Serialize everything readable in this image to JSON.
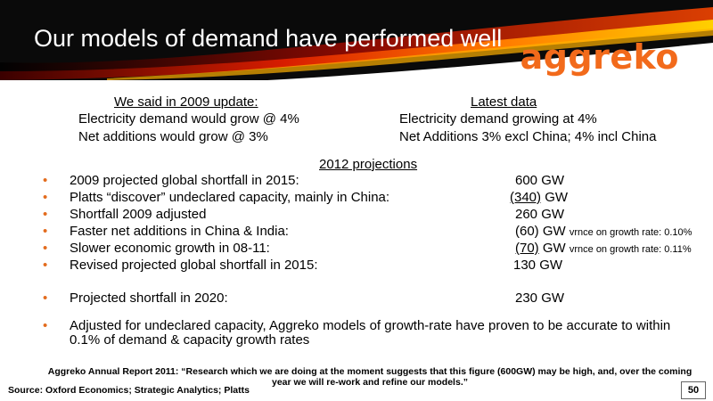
{
  "slide": {
    "title": "Our models of demand have performed well",
    "logo_text": "aggreko",
    "page_number": "50"
  },
  "left_column": {
    "heading": "We said in 2009 update:",
    "lines": [
      "Electricity demand would grow @ 4%",
      "Net additions would grow @ 3%"
    ]
  },
  "right_column": {
    "heading": "Latest data",
    "lines": [
      "Electricity demand growing at 4%",
      "Net Additions 3% excl China; 4% incl China"
    ]
  },
  "projections": {
    "heading": "2012 projections",
    "items": [
      {
        "label": "2009 projected global shortfall in 2015:",
        "value_pre": "",
        "value_num": "600",
        "value_unit": " GW",
        "note": ""
      },
      {
        "label": "Platts “discover” undeclared capacity, mainly in China:",
        "value_pre": "",
        "value_num": "(340)",
        "value_unit": " GW",
        "note": ""
      },
      {
        "label": "Shortfall 2009 adjusted",
        "value_pre": "",
        "value_num": "260",
        "value_unit": " GW",
        "note": ""
      },
      {
        "label": "Faster net additions in China & India:",
        "value_pre": "",
        "value_num": "(60)",
        "value_unit": " GW",
        "note": "vrnce on growth rate: 0.10%"
      },
      {
        "label": "Slower economic growth in 08-11:",
        "value_pre": "",
        "value_num": "(70)",
        "value_unit": " GW",
        "note": "vrnce on growth rate: 0.11%"
      },
      {
        "label": "Revised projected global shortfall in 2015:",
        "value_pre": "",
        "value_num": "130",
        "value_unit": " GW",
        "note": ""
      }
    ],
    "shortfall_2020": {
      "label": "Projected shortfall in 2020:",
      "value": "230 GW"
    },
    "conclusion": "Adjusted for undeclared capacity, Aggreko models of growth-rate have proven to be accurate to within 0.1% of demand & capacity growth rates"
  },
  "footer": {
    "quote": "Aggreko Annual Report 2011: “Research which we are doing at the moment suggests that this figure (600GW) may be high, and, over the coming year we will re-work and refine our models.”",
    "source": "Source: Oxford Economics; Strategic Analytics; Platts"
  },
  "colors": {
    "accent": "#e36c1e",
    "logo": "#f26a1b",
    "header_bg": "#0a0a0a"
  }
}
